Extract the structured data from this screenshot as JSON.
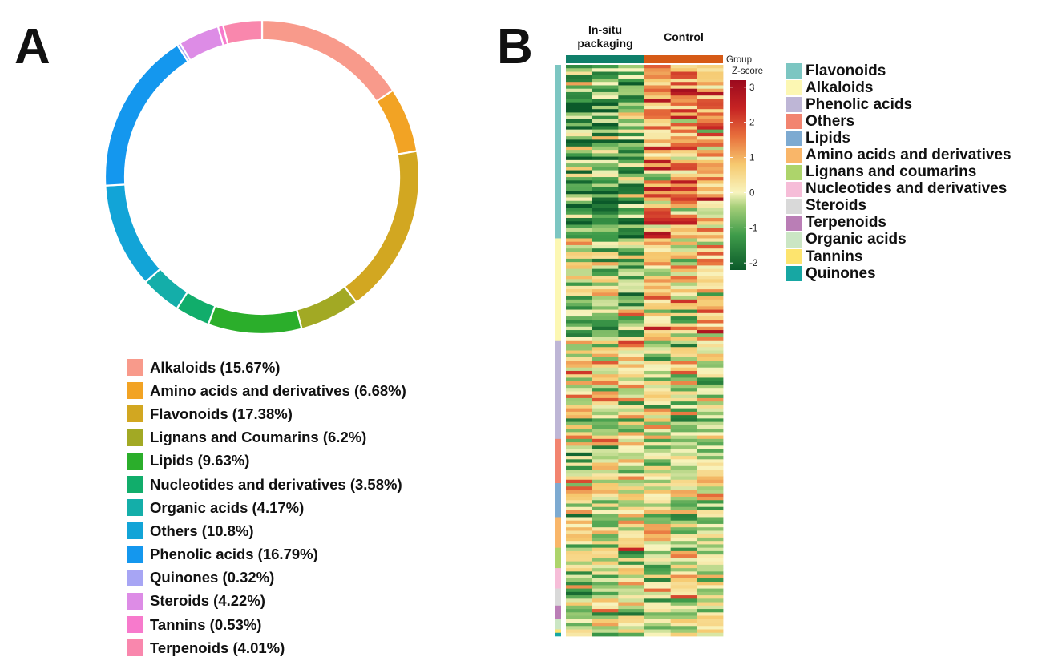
{
  "panels": {
    "a": "A",
    "b": "B"
  },
  "chart_data": [
    {
      "type": "pie",
      "variant": "donut",
      "title": "",
      "legend_position": "bottom",
      "categories": [
        "Alkaloids",
        "Amino acids and derivatives",
        "Flavonoids",
        "Lignans and Coumarins",
        "Lipids",
        "Nucleotides and derivatives",
        "Organic acids",
        "Others",
        "Phenolic acids",
        "Quinones",
        "Steroids",
        "Tannins",
        "Terpenoids"
      ],
      "values": [
        15.67,
        6.68,
        17.38,
        6.2,
        9.63,
        3.58,
        4.17,
        10.8,
        16.79,
        0.32,
        4.22,
        0.53,
        4.01
      ],
      "colors": [
        "#F89A8B",
        "#F2A324",
        "#D2A721",
        "#A2A924",
        "#2BAE2B",
        "#11AD6B",
        "#14AEA9",
        "#12A4D7",
        "#1497EE",
        "#A7A5F4",
        "#DD8CE6",
        "#F77ACC",
        "#F987AD"
      ],
      "labels": [
        "Alkaloids (15.67%)",
        "Amino acids and derivatives (6.68%)",
        "Flavonoids (17.38%)",
        "Lignans and Coumarins (6.2%)",
        "Lipids (9.63%)",
        "Nucleotides and derivatives (3.58%)",
        "Organic acids (4.17%)",
        "Others (10.8%)",
        "Phenolic acids (16.79%)",
        "Quinones (0.32%)",
        "Steroids (4.22%)",
        "Tannins (0.53%)",
        "Terpenoids (4.01%)"
      ]
    },
    {
      "type": "heatmap",
      "title": "",
      "columns": [
        "In-situ packaging",
        "In-situ packaging",
        "In-situ packaging",
        "Control",
        "Control",
        "Control"
      ],
      "group_labels": [
        "In-situ packaging",
        "Control"
      ],
      "group_colors": [
        "#0F7F6A",
        "#D65A16"
      ],
      "group_legend_label": "Group",
      "colorbar": {
        "title": "Z-score",
        "ticks": [
          3,
          2,
          1,
          0,
          -1,
          -2
        ],
        "range": [
          -2.2,
          3.2
        ],
        "stops": [
          {
            "v": -2.2,
            "c": "#0B5A2A"
          },
          {
            "v": -1.2,
            "c": "#3F9C4A"
          },
          {
            "v": -0.4,
            "c": "#A6CF79"
          },
          {
            "v": 0.0,
            "c": "#F8F4BE"
          },
          {
            "v": 0.8,
            "c": "#F6C96F"
          },
          {
            "v": 1.6,
            "c": "#E8703C"
          },
          {
            "v": 2.4,
            "c": "#C62323"
          },
          {
            "v": 3.2,
            "c": "#9B0A1E"
          }
        ]
      },
      "row_classes": [
        {
          "name": "Flavonoids",
          "color": "#7CC6C2",
          "rows": 51
        },
        {
          "name": "Alkaloids",
          "color": "#FCF7B3",
          "rows": 30
        },
        {
          "name": "Phenolic acids",
          "color": "#BEB6D6",
          "rows": 29
        },
        {
          "name": "Others",
          "color": "#F28470",
          "rows": 13
        },
        {
          "name": "Lipids",
          "color": "#7DAAD1",
          "rows": 10
        },
        {
          "name": "Amino acids and derivatives",
          "color": "#F9B669",
          "rows": 9
        },
        {
          "name": "Lignans and coumarins",
          "color": "#ADD46B",
          "rows": 6
        },
        {
          "name": "Nucleotides and derivatives",
          "color": "#F6BDD8",
          "rows": 6
        },
        {
          "name": "Steroids",
          "color": "#D9D9D9",
          "rows": 5
        },
        {
          "name": "Terpenoids",
          "color": "#BA7EB6",
          "rows": 4
        },
        {
          "name": "Organic acids",
          "color": "#CBE6C4",
          "rows": 3
        },
        {
          "name": "Tannins",
          "color": "#FDE46E",
          "rows": 1
        },
        {
          "name": "Quinones",
          "color": "#17A7A3",
          "rows": 1
        }
      ]
    }
  ],
  "heatmap_rows": 168
}
